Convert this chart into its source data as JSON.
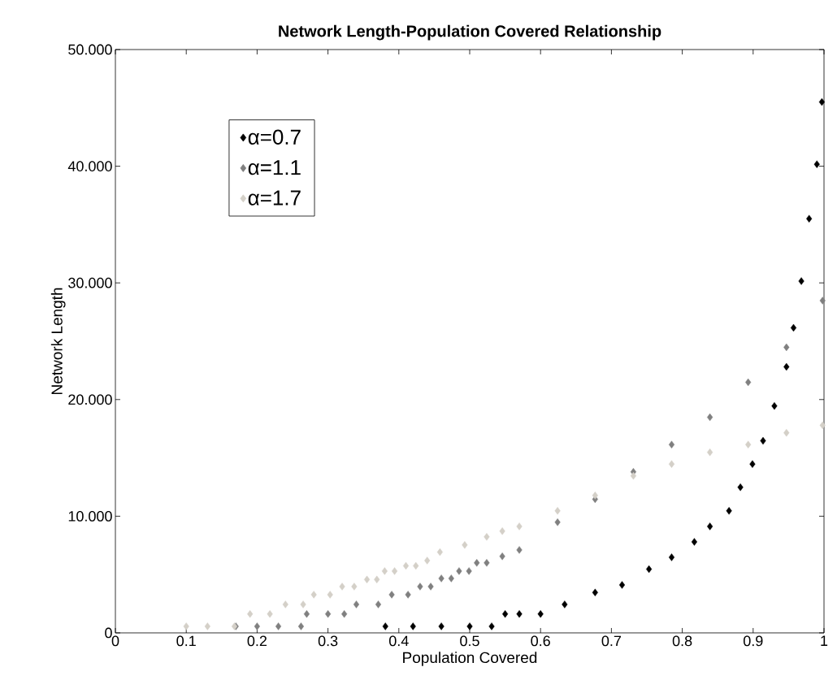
{
  "chart_data": {
    "type": "scatter",
    "title": "Network Length-Population Covered Relationship",
    "xlabel": "Population Covered",
    "ylabel": "Network Length",
    "xlim": [
      0,
      1
    ],
    "xticks": [
      0,
      0.1,
      0.2,
      0.3,
      0.4,
      0.5,
      0.6,
      0.7,
      0.8,
      0.9,
      1
    ],
    "ylim": [
      0,
      50
    ],
    "yticks": [
      0,
      {
        "value": 10,
        "label": "10.000"
      },
      {
        "value": 20,
        "label": "20.000"
      },
      {
        "value": 30,
        "label": "30.000"
      },
      {
        "value": 40,
        "label": "40.000"
      },
      {
        "value": 50,
        "label": "50.000"
      }
    ],
    "grid": false,
    "legend": "top left",
    "marker": "diamond",
    "series": [
      {
        "name": "α=0.7",
        "color": "#000000",
        "x": [
          0.381,
          0.42,
          0.46,
          0.5,
          0.531,
          0.55,
          0.57,
          0.6,
          0.634,
          0.677,
          0.715,
          0.753,
          0.785,
          0.817,
          0.839,
          0.866,
          0.882,
          0.899,
          0.914,
          0.93,
          0.947,
          0.957,
          0.968,
          0.979,
          0.99,
          0.997
        ],
        "values": [
          0.56,
          0.56,
          0.56,
          0.56,
          0.56,
          1.62,
          1.62,
          1.62,
          2.44,
          3.46,
          4.11,
          5.46,
          6.48,
          7.8,
          9.13,
          10.46,
          12.48,
          14.47,
          16.46,
          19.45,
          22.8,
          26.15,
          30.15,
          35.5,
          40.17,
          45.5
        ]
      },
      {
        "name": "α=1.1",
        "color": "#808080",
        "x": [
          0.17,
          0.2,
          0.23,
          0.262,
          0.27,
          0.3,
          0.323,
          0.34,
          0.371,
          0.39,
          0.413,
          0.43,
          0.445,
          0.46,
          0.474,
          0.485,
          0.499,
          0.51,
          0.524,
          0.546,
          0.57,
          0.624,
          0.677,
          0.731,
          0.785,
          0.839,
          0.893,
          0.947,
          0.998
        ],
        "values": [
          0.56,
          0.56,
          0.56,
          0.56,
          1.62,
          1.62,
          1.62,
          2.44,
          2.44,
          3.28,
          3.28,
          3.97,
          3.97,
          4.67,
          4.67,
          5.3,
          5.3,
          6.0,
          6.0,
          6.56,
          7.11,
          9.48,
          11.46,
          13.8,
          16.14,
          18.48,
          21.48,
          24.48,
          28.48
        ]
      },
      {
        "name": "α=1.7",
        "color": "#d4d0c8",
        "x": [
          0.1,
          0.13,
          0.168,
          0.19,
          0.218,
          0.24,
          0.265,
          0.28,
          0.303,
          0.32,
          0.337,
          0.355,
          0.369,
          0.38,
          0.394,
          0.41,
          0.424,
          0.44,
          0.458,
          0.493,
          0.524,
          0.546,
          0.57,
          0.624,
          0.677,
          0.731,
          0.785,
          0.839,
          0.893,
          0.947,
          0.998
        ],
        "values": [
          0.56,
          0.56,
          0.56,
          1.62,
          1.62,
          2.44,
          2.44,
          3.28,
          3.28,
          3.97,
          3.97,
          4.57,
          4.57,
          5.3,
          5.3,
          5.75,
          5.75,
          6.2,
          6.92,
          7.53,
          8.23,
          8.72,
          9.13,
          10.46,
          11.78,
          13.46,
          14.47,
          15.48,
          16.14,
          17.15,
          17.8
        ]
      }
    ]
  }
}
